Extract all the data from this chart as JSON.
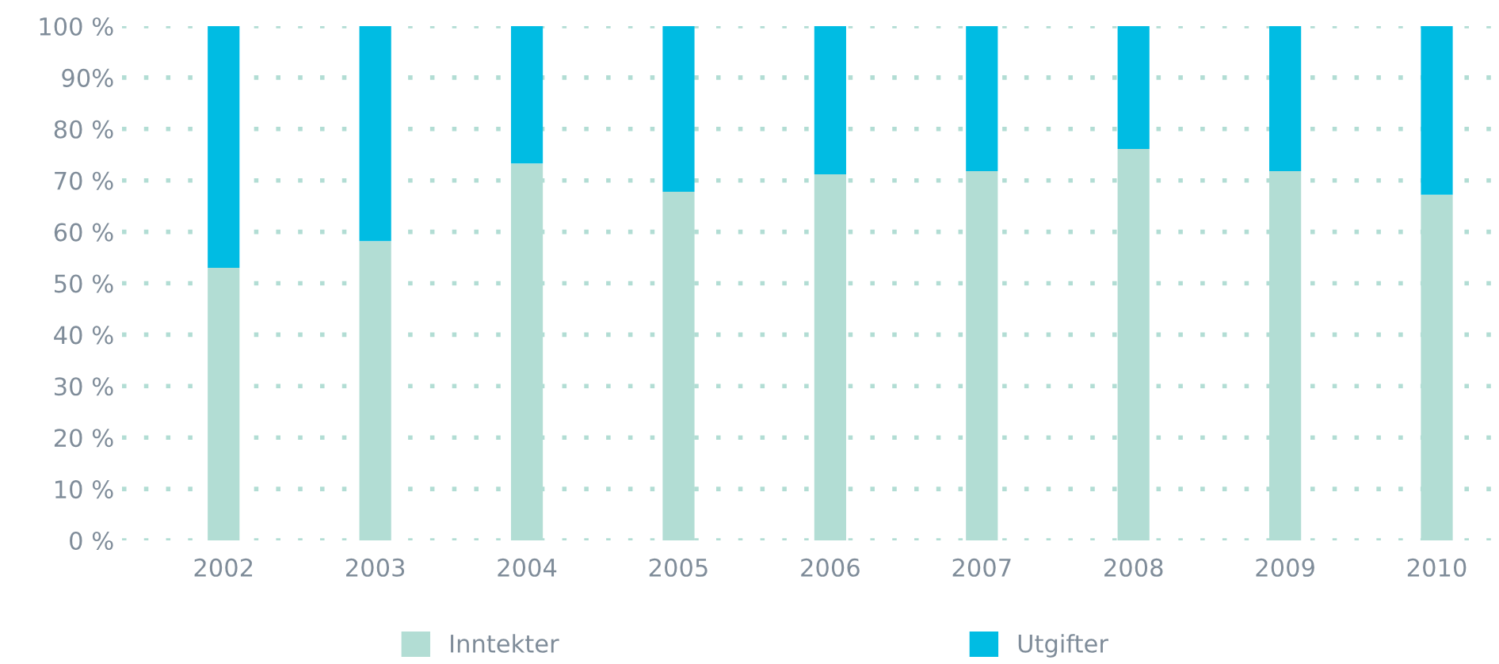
{
  "chart_data": {
    "type": "bar",
    "stacked": true,
    "categories": [
      "2002",
      "2003",
      "2004",
      "2005",
      "2006",
      "2007",
      "2008",
      "2009",
      "2010"
    ],
    "series": [
      {
        "name": "Inntekter",
        "color": "#b2ddd4",
        "values": [
          53.0,
          58.2,
          73.3,
          67.8,
          71.2,
          71.8,
          76.1,
          71.8,
          67.2
        ]
      },
      {
        "name": "Utgifter",
        "color": "#00bce3",
        "values": [
          47.0,
          41.8,
          26.7,
          32.2,
          28.8,
          28.2,
          23.9,
          28.2,
          32.8
        ]
      }
    ],
    "ylim": [
      0,
      100
    ],
    "yticks": [
      {
        "value": 0,
        "label": "0 %"
      },
      {
        "value": 10,
        "label": "10 %"
      },
      {
        "value": 20,
        "label": "20 %"
      },
      {
        "value": 30,
        "label": "30 %"
      },
      {
        "value": 40,
        "label": "40 %"
      },
      {
        "value": 50,
        "label": "50 %"
      },
      {
        "value": 60,
        "label": "60 %"
      },
      {
        "value": 70,
        "label": "70 %"
      },
      {
        "value": 80,
        "label": "80 %"
      },
      {
        "value": 90,
        "label": "90%"
      },
      {
        "value": 100,
        "label": "100 %"
      }
    ],
    "grid": "y",
    "legend": "bottom"
  }
}
